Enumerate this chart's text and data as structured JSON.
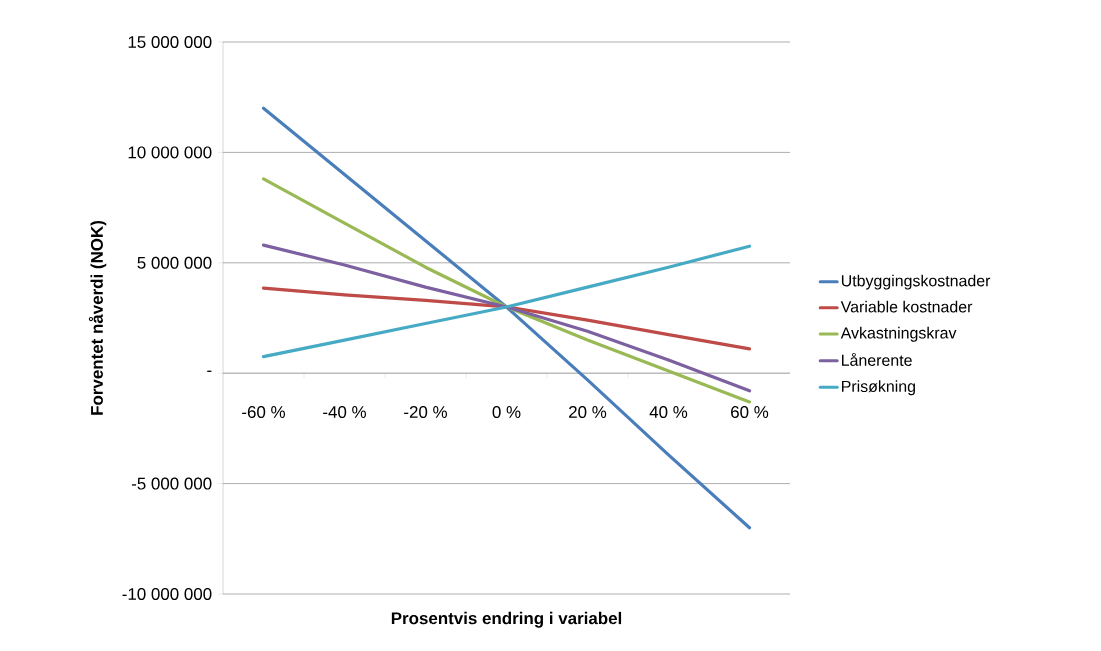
{
  "chart_data": {
    "type": "line",
    "xlabel": "Prosentvis endring i variabel",
    "ylabel": "Forventet nåverdi (NOK)",
    "categories": [
      "-60 %",
      "-40 %",
      "-20 %",
      "0 %",
      "20 %",
      "40 %",
      "60 %"
    ],
    "ylim": [
      -10000000,
      15000000
    ],
    "yticks": [
      {
        "value": -10000000,
        "label": "-10 000 000"
      },
      {
        "value": -5000000,
        "label": "-5 000 000"
      },
      {
        "value": 0,
        "label": "-"
      },
      {
        "value": 5000000,
        "label": "5 000 000"
      },
      {
        "value": 10000000,
        "label": "10 000 000"
      },
      {
        "value": 15000000,
        "label": "15 000 000"
      }
    ],
    "grid": "y",
    "legend": "right",
    "marker": "none",
    "line_style": "solid",
    "series": [
      {
        "name": "Utbyggingskostnader",
        "color": "#4a7ebb",
        "values": [
          12000000,
          9000000,
          6000000,
          3000000,
          -300000,
          -3700000,
          -7000000
        ]
      },
      {
        "name": "Variable kostnader",
        "color": "#be4b48",
        "values": [
          3850000,
          3550000,
          3300000,
          3000000,
          2400000,
          1750000,
          1100000
        ]
      },
      {
        "name": "Avkastningskrav",
        "color": "#98b954",
        "values": [
          8800000,
          6800000,
          4800000,
          3000000,
          1500000,
          100000,
          -1300000
        ]
      },
      {
        "name": "Lånerente",
        "color": "#7d60a0",
        "values": [
          5800000,
          4900000,
          3900000,
          3000000,
          1900000,
          600000,
          -800000
        ]
      },
      {
        "name": "Prisøkning",
        "color": "#46aac5",
        "values": [
          750000,
          1500000,
          2250000,
          3000000,
          3900000,
          4800000,
          5750000
        ]
      }
    ]
  }
}
